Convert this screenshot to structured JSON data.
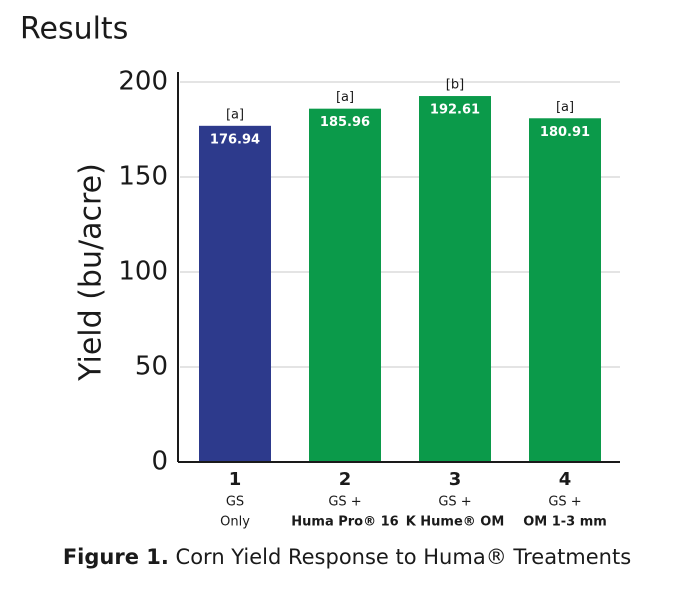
{
  "chart_data": {
    "type": "bar",
    "title": "Results",
    "y_label": "Yield (bu/acre)",
    "categories": [
      "1",
      "2",
      "3",
      "4"
    ],
    "category_sublabels": [
      [
        "GS",
        "Only"
      ],
      [
        "GS +",
        "Huma Pro® 16"
      ],
      [
        "GS +",
        "K Hume® OM"
      ],
      [
        "GS +",
        "OM 1-3 mm"
      ]
    ],
    "values": [
      176.94,
      185.96,
      192.61,
      180.91
    ],
    "significance_labels": [
      "[a]",
      "[a]",
      "[b]",
      "[a]"
    ],
    "colors": [
      "#2d3a8c",
      "#0b9a4a",
      "#0b9a4a",
      "#0b9a4a"
    ],
    "ylim": [
      0,
      200
    ],
    "yticks": [
      0,
      50,
      100,
      150,
      200
    ],
    "grid": true,
    "caption_label": "Figure 1.",
    "caption": "Corn Yield Response to Huma® Treatments"
  }
}
